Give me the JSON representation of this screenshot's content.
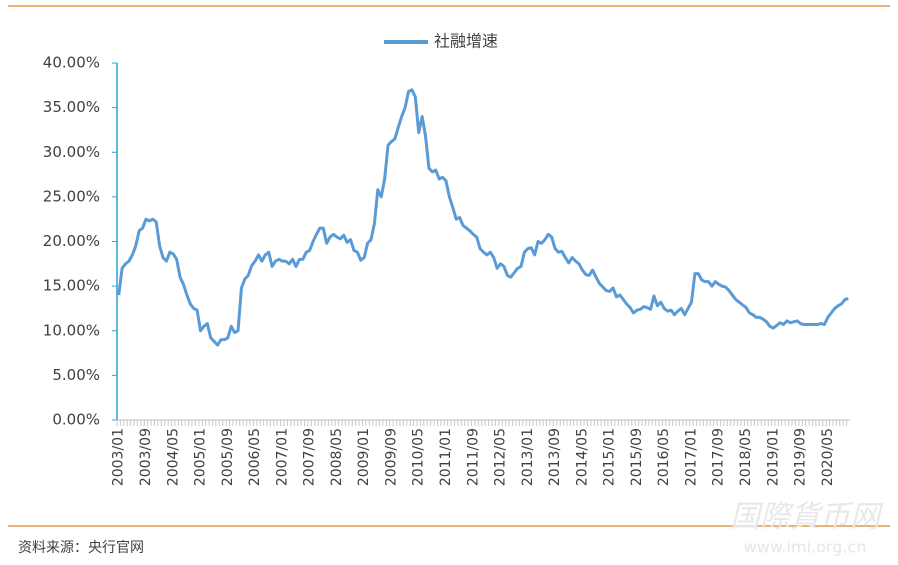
{
  "chart_data": {
    "type": "line",
    "source": "资料来源：央行官网",
    "watermark": [
      "国際貨币网",
      "www.imi.org.cn"
    ],
    "categories": [
      "2003/01",
      null,
      null,
      null,
      null,
      null,
      null,
      null,
      "2003/09",
      null,
      null,
      null,
      null,
      null,
      null,
      null,
      "2004/05",
      null,
      null,
      null,
      null,
      null,
      null,
      null,
      "2005/01",
      null,
      null,
      null,
      null,
      null,
      null,
      null,
      "2005/09",
      null,
      null,
      null,
      null,
      null,
      null,
      null,
      "2006/05",
      null,
      null,
      null,
      null,
      null,
      null,
      null,
      "2007/01",
      null,
      null,
      null,
      null,
      null,
      null,
      null,
      "2007/09",
      null,
      null,
      null,
      null,
      null,
      null,
      null,
      "2008/05",
      null,
      null,
      null,
      null,
      null,
      null,
      null,
      "2009/01",
      null,
      null,
      null,
      null,
      null,
      null,
      null,
      "2009/09",
      null,
      null,
      null,
      null,
      null,
      null,
      null,
      "2010/05",
      null,
      null,
      null,
      null,
      null,
      null,
      null,
      "2011/01",
      null,
      null,
      null,
      null,
      null,
      null,
      null,
      "2011/09",
      null,
      null,
      null,
      null,
      null,
      null,
      null,
      "2012/05",
      null,
      null,
      null,
      null,
      null,
      null,
      null,
      "2013/01",
      null,
      null,
      null,
      null,
      null,
      null,
      null,
      "2013/09",
      null,
      null,
      null,
      null,
      null,
      null,
      null,
      "2014/05",
      null,
      null,
      null,
      null,
      null,
      null,
      null,
      "2015/01",
      null,
      null,
      null,
      null,
      null,
      null,
      null,
      "2015/09",
      null,
      null,
      null,
      null,
      null,
      null,
      null,
      "2016/05",
      null,
      null,
      null,
      null,
      null,
      null,
      null,
      "2017/01",
      null,
      null,
      null,
      null,
      null,
      null,
      null,
      "2017/09",
      null,
      null,
      null,
      null,
      null,
      null,
      null,
      "2018/05",
      null,
      null,
      null,
      null,
      null,
      null,
      null,
      "2019/01",
      null,
      null,
      null,
      null,
      null,
      null,
      null,
      "2019/09",
      null,
      null,
      null,
      null,
      null,
      null,
      null,
      "2020/05",
      null,
      null,
      null,
      null,
      null,
      null
    ],
    "series": [
      {
        "name": "社融增速",
        "color": "#5b9bd5",
        "values": [
          14.0,
          17.0,
          17.5,
          17.8,
          18.5,
          19.5,
          21.2,
          21.5,
          22.5,
          22.3,
          22.5,
          22.2,
          19.5,
          18.2,
          17.8,
          18.8,
          18.6,
          18.0,
          16.0,
          15.2,
          14.0,
          13.0,
          12.5,
          12.3,
          10.0,
          10.5,
          10.8,
          9.2,
          8.8,
          8.4,
          9.0,
          9.0,
          9.2,
          10.5,
          9.8,
          10.0,
          14.8,
          15.8,
          16.2,
          17.3,
          17.8,
          18.5,
          17.8,
          18.5,
          18.8,
          17.2,
          17.8,
          18.0,
          17.8,
          17.8,
          17.5,
          18.0,
          17.2,
          18.0,
          18.0,
          18.8,
          19.0,
          20.0,
          20.8,
          21.5,
          21.5,
          19.8,
          20.5,
          20.8,
          20.5,
          20.3,
          20.7,
          19.9,
          20.2,
          19.0,
          18.8,
          17.9,
          18.2,
          19.8,
          20.2,
          22.0,
          25.8,
          25.0,
          27.0,
          30.8,
          31.2,
          31.5,
          32.8,
          34.0,
          35.0,
          36.8,
          37.0,
          36.2,
          32.2,
          34.0,
          31.8,
          28.2,
          27.8,
          28.0,
          27.0,
          27.2,
          26.8,
          25.0,
          23.8,
          22.5,
          22.7,
          21.8,
          21.5,
          21.2,
          20.8,
          20.5,
          19.2,
          18.8,
          18.5,
          18.8,
          18.2,
          17.0,
          17.5,
          17.2,
          16.2,
          16.0,
          16.5,
          17.0,
          17.2,
          18.8,
          19.2,
          19.3,
          18.5,
          20.0,
          19.8,
          20.2,
          20.8,
          20.5,
          19.2,
          18.8,
          18.9,
          18.2,
          17.6,
          18.2,
          17.8,
          17.5,
          16.8,
          16.3,
          16.2,
          16.8,
          16.0,
          15.3,
          14.9,
          14.5,
          14.4,
          14.8,
          13.8,
          14.0,
          13.5,
          13.0,
          12.6,
          12.0,
          12.3,
          12.4,
          12.7,
          12.6,
          12.4,
          13.9,
          12.8,
          13.2,
          12.5,
          12.2,
          12.3,
          11.8,
          12.2,
          12.5,
          11.8,
          12.5,
          13.2,
          16.4,
          16.4,
          15.7,
          15.5,
          15.5,
          15.0,
          15.5,
          15.2,
          15.0,
          14.9,
          14.5,
          14.0,
          13.5,
          13.2,
          12.9,
          12.6,
          12.0,
          11.8,
          11.5,
          11.5,
          11.3,
          11.0,
          10.5,
          10.3,
          10.6,
          10.9,
          10.7,
          11.1,
          10.9,
          11.0,
          11.1,
          10.8,
          10.7,
          10.7,
          10.7,
          10.7,
          10.7,
          10.8,
          10.7,
          11.5,
          12.0,
          12.5,
          12.8,
          13.0,
          13.5,
          13.6
        ]
      }
    ],
    "ylim": [
      0,
      40
    ],
    "yticks": [
      {
        "value": 0,
        "label": "0.00%"
      },
      {
        "value": 5,
        "label": "5.00%"
      },
      {
        "value": 10,
        "label": "10.00%"
      },
      {
        "value": 15,
        "label": "15.00%"
      },
      {
        "value": 20,
        "label": "20.00%"
      },
      {
        "value": 25,
        "label": "25.00%"
      },
      {
        "value": 30,
        "label": "30.00%"
      },
      {
        "value": 35,
        "label": "35.00%"
      },
      {
        "value": 40,
        "label": "40.00%"
      }
    ],
    "legend": "top",
    "grid": false
  }
}
